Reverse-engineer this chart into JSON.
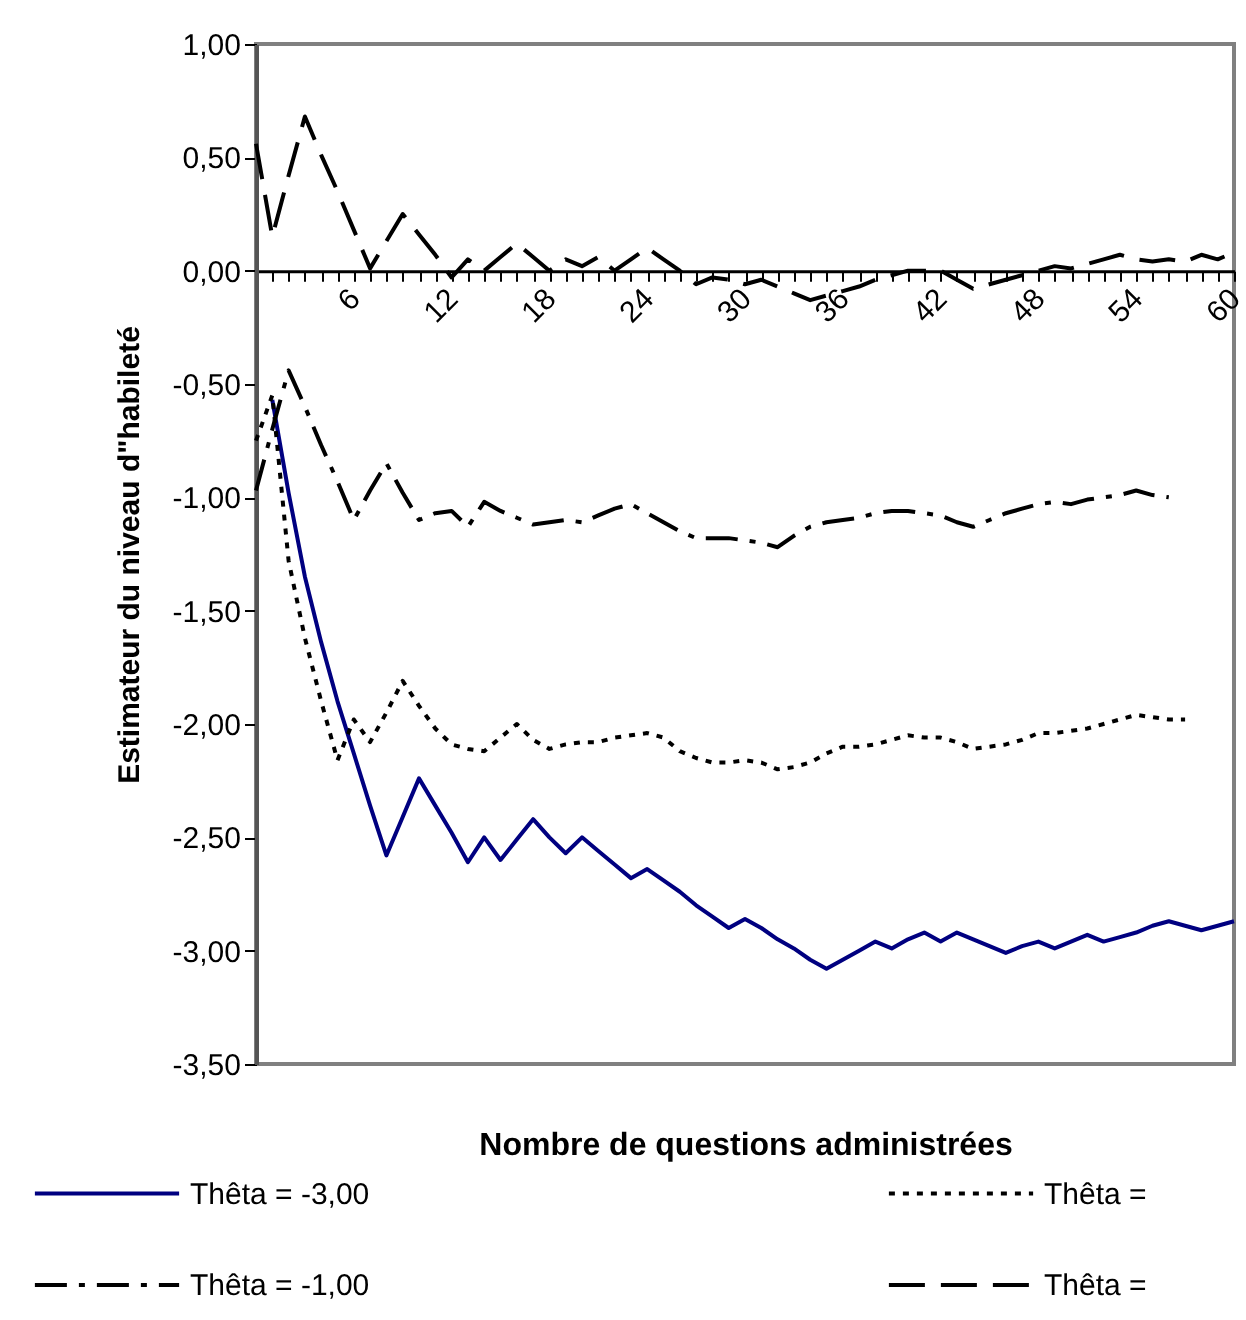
{
  "chart_data": {
    "type": "line",
    "xlabel": "Nombre de questions administrées",
    "ylabel": "Estimateur du niveau d\"habileté",
    "categories": [
      null,
      null,
      null,
      null,
      null,
      null,
      "6",
      null,
      null,
      null,
      null,
      null,
      "12",
      null,
      null,
      null,
      null,
      null,
      "18",
      null,
      null,
      null,
      null,
      null,
      "24",
      null,
      null,
      null,
      null,
      null,
      "30",
      null,
      null,
      null,
      null,
      null,
      "36",
      null,
      null,
      null,
      null,
      null,
      "42",
      null,
      null,
      null,
      null,
      null,
      "48",
      null,
      null,
      null,
      null,
      null,
      "54",
      null,
      null,
      null,
      null,
      null,
      "60"
    ],
    "ylim": [
      -3.5,
      1
    ],
    "yticks": [
      {
        "value": -3.5,
        "label": "-3,50"
      },
      {
        "value": -3,
        "label": "-3,00"
      },
      {
        "value": -2.5,
        "label": "-2,50"
      },
      {
        "value": -2,
        "label": "-2,00"
      },
      {
        "value": -1.5,
        "label": "-1,50"
      },
      {
        "value": -1,
        "label": "-1,00"
      },
      {
        "value": -0.5,
        "label": "-0,50"
      },
      {
        "value": 0,
        "label": "0,00"
      },
      {
        "value": 0.5,
        "label": "0,50"
      },
      {
        "value": 1,
        "label": "1,00"
      }
    ],
    "grid": false,
    "legend": "bottom",
    "marker": "none",
    "series": [
      {
        "name": "Thêta = -3,00",
        "color": "#000080",
        "line_style": "solid",
        "values": [
          null,
          -0.57,
          -0.98,
          -1.35,
          -1.64,
          -1.9,
          -2.13,
          -2.36,
          -2.58,
          -2.41,
          -2.24,
          -2.36,
          -2.48,
          -2.61,
          -2.5,
          -2.6,
          -2.51,
          -2.42,
          -2.5,
          -2.57,
          -2.5,
          -2.56,
          -2.62,
          -2.68,
          -2.64,
          -2.69,
          -2.74,
          -2.8,
          -2.85,
          -2.9,
          -2.86,
          -2.9,
          -2.95,
          -2.99,
          -3.04,
          -3.08,
          -3.04,
          -3.0,
          -2.96,
          -2.99,
          -2.95,
          -2.92,
          -2.96,
          -2.92,
          -2.95,
          -2.98,
          -3.01,
          -2.98,
          -2.96,
          -2.99,
          -2.96,
          -2.93,
          -2.96,
          -2.94,
          -2.92,
          -2.89,
          -2.87,
          -2.89,
          -2.91,
          -2.89,
          -2.87
        ]
      },
      {
        "name": "Thêta =",
        "color": "#000000",
        "line_style": "dotted",
        "values": [
          -0.75,
          -0.55,
          -1.28,
          -1.62,
          -1.9,
          -2.16,
          -1.98,
          -2.08,
          -1.95,
          -1.81,
          -1.92,
          -2.02,
          -2.09,
          -2.11,
          -2.12,
          -2.06,
          -2.0,
          -2.07,
          -2.11,
          -2.09,
          -2.08,
          -2.08,
          -2.06,
          -2.05,
          -2.04,
          -2.06,
          -2.12,
          -2.15,
          -2.17,
          -2.17,
          -2.16,
          -2.17,
          -2.2,
          -2.19,
          -2.17,
          -2.13,
          -2.1,
          -2.1,
          -2.09,
          -2.07,
          -2.05,
          -2.06,
          -2.06,
          -2.08,
          -2.11,
          -2.1,
          -2.09,
          -2.07,
          -2.04,
          -2.04,
          -2.03,
          -2.02,
          -2.0,
          -1.98,
          -1.96,
          -1.97,
          -1.98,
          -1.98,
          null,
          null,
          null
        ]
      },
      {
        "name": "Thêta = -1,00",
        "color": "#000000",
        "line_style": "dashdot",
        "values": [
          -0.97,
          -0.7,
          -0.44,
          -0.6,
          -0.77,
          -0.93,
          -1.1,
          -0.97,
          -0.85,
          -0.98,
          -1.1,
          -1.07,
          -1.06,
          -1.13,
          -1.02,
          -1.06,
          -1.09,
          -1.12,
          -1.11,
          -1.1,
          -1.11,
          -1.08,
          -1.05,
          -1.03,
          -1.07,
          -1.11,
          -1.15,
          -1.18,
          -1.18,
          -1.18,
          -1.19,
          -1.2,
          -1.22,
          -1.17,
          -1.13,
          -1.11,
          -1.1,
          -1.09,
          -1.07,
          -1.06,
          -1.06,
          -1.07,
          -1.08,
          -1.11,
          -1.13,
          -1.1,
          -1.07,
          -1.05,
          -1.03,
          -1.02,
          -1.03,
          -1.01,
          -1.0,
          -0.99,
          -0.97,
          -0.99,
          -1.0,
          null,
          null,
          null,
          null
        ]
      },
      {
        "name": "Thêta =",
        "color": "#000000",
        "line_style": "dashed",
        "values": [
          0.56,
          0.15,
          0.42,
          0.68,
          0.51,
          0.35,
          0.18,
          0.01,
          0.13,
          0.25,
          0.16,
          0.07,
          -0.03,
          0.05,
          0.0,
          0.06,
          0.12,
          0.06,
          0.0,
          0.05,
          0.02,
          0.06,
          0.0,
          0.05,
          0.1,
          0.05,
          0.0,
          -0.06,
          -0.03,
          -0.04,
          -0.06,
          -0.04,
          -0.07,
          -0.1,
          -0.13,
          -0.11,
          -0.09,
          -0.07,
          -0.04,
          -0.02,
          0.0,
          0.0,
          0.0,
          -0.04,
          -0.08,
          -0.06,
          -0.04,
          -0.02,
          0.0,
          0.02,
          0.01,
          0.03,
          0.05,
          0.07,
          0.05,
          0.04,
          0.05,
          0.04,
          0.07,
          0.05,
          0.08
        ]
      }
    ]
  }
}
